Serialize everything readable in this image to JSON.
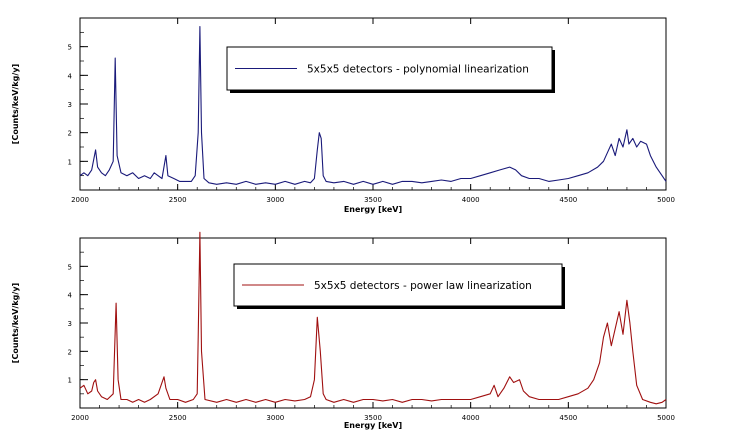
{
  "chart_data": [
    {
      "type": "line",
      "series": [
        {
          "name": "5x5x5 detectors - polynomial linearization",
          "color": "#1a1a7a",
          "points": [
            [
              2000,
              0.5
            ],
            [
              2020,
              0.6
            ],
            [
              2040,
              0.5
            ],
            [
              2060,
              0.7
            ],
            [
              2080,
              1.4
            ],
            [
              2090,
              0.8
            ],
            [
              2110,
              0.6
            ],
            [
              2130,
              0.5
            ],
            [
              2150,
              0.7
            ],
            [
              2170,
              1.0
            ],
            [
              2180,
              4.6
            ],
            [
              2190,
              1.2
            ],
            [
              2210,
              0.6
            ],
            [
              2240,
              0.5
            ],
            [
              2270,
              0.6
            ],
            [
              2300,
              0.4
            ],
            [
              2330,
              0.5
            ],
            [
              2360,
              0.4
            ],
            [
              2380,
              0.6
            ],
            [
              2400,
              0.5
            ],
            [
              2420,
              0.4
            ],
            [
              2440,
              1.2
            ],
            [
              2450,
              0.5
            ],
            [
              2480,
              0.4
            ],
            [
              2510,
              0.3
            ],
            [
              2540,
              0.3
            ],
            [
              2570,
              0.3
            ],
            [
              2590,
              0.5
            ],
            [
              2605,
              2.0
            ],
            [
              2614,
              5.7
            ],
            [
              2622,
              2.0
            ],
            [
              2635,
              0.4
            ],
            [
              2660,
              0.25
            ],
            [
              2700,
              0.2
            ],
            [
              2750,
              0.25
            ],
            [
              2800,
              0.2
            ],
            [
              2850,
              0.3
            ],
            [
              2900,
              0.2
            ],
            [
              2950,
              0.25
            ],
            [
              3000,
              0.2
            ],
            [
              3050,
              0.3
            ],
            [
              3100,
              0.2
            ],
            [
              3150,
              0.3
            ],
            [
              3180,
              0.25
            ],
            [
              3200,
              0.4
            ],
            [
              3215,
              1.4
            ],
            [
              3225,
              2.0
            ],
            [
              3235,
              1.8
            ],
            [
              3245,
              0.5
            ],
            [
              3260,
              0.3
            ],
            [
              3300,
              0.25
            ],
            [
              3350,
              0.3
            ],
            [
              3400,
              0.2
            ],
            [
              3450,
              0.3
            ],
            [
              3500,
              0.2
            ],
            [
              3550,
              0.3
            ],
            [
              3600,
              0.2
            ],
            [
              3650,
              0.3
            ],
            [
              3700,
              0.3
            ],
            [
              3750,
              0.25
            ],
            [
              3800,
              0.3
            ],
            [
              3850,
              0.35
            ],
            [
              3900,
              0.3
            ],
            [
              3950,
              0.4
            ],
            [
              4000,
              0.4
            ],
            [
              4050,
              0.5
            ],
            [
              4100,
              0.6
            ],
            [
              4150,
              0.7
            ],
            [
              4200,
              0.8
            ],
            [
              4230,
              0.7
            ],
            [
              4260,
              0.5
            ],
            [
              4300,
              0.4
            ],
            [
              4350,
              0.4
            ],
            [
              4400,
              0.3
            ],
            [
              4450,
              0.35
            ],
            [
              4500,
              0.4
            ],
            [
              4550,
              0.5
            ],
            [
              4600,
              0.6
            ],
            [
              4650,
              0.8
            ],
            [
              4680,
              1.0
            ],
            [
              4700,
              1.3
            ],
            [
              4720,
              1.6
            ],
            [
              4740,
              1.2
            ],
            [
              4760,
              1.8
            ],
            [
              4780,
              1.5
            ],
            [
              4800,
              2.1
            ],
            [
              4810,
              1.6
            ],
            [
              4830,
              1.8
            ],
            [
              4850,
              1.5
            ],
            [
              4870,
              1.7
            ],
            [
              4900,
              1.6
            ],
            [
              4920,
              1.2
            ],
            [
              4950,
              0.8
            ],
            [
              4980,
              0.5
            ],
            [
              5000,
              0.3
            ]
          ]
        }
      ],
      "xlabel": "Energy [keV]",
      "ylabel": "[Counts/keV/kg/y]",
      "xlim": [
        2000,
        5000
      ],
      "ylim": [
        0,
        6
      ],
      "xticks": [
        2000,
        2500,
        3000,
        3500,
        4000,
        4500,
        5000
      ],
      "yticks": [
        1,
        2,
        3,
        4,
        5
      ],
      "legend_position": "top-center",
      "grid": false
    },
    {
      "type": "line",
      "series": [
        {
          "name": "5x5x5 detectors - power law linearization",
          "color": "#a01010",
          "points": [
            [
              2000,
              0.7
            ],
            [
              2020,
              0.8
            ],
            [
              2040,
              0.5
            ],
            [
              2060,
              0.6
            ],
            [
              2070,
              0.9
            ],
            [
              2080,
              1.0
            ],
            [
              2090,
              0.6
            ],
            [
              2110,
              0.4
            ],
            [
              2140,
              0.3
            ],
            [
              2170,
              0.5
            ],
            [
              2185,
              3.7
            ],
            [
              2195,
              1.0
            ],
            [
              2210,
              0.3
            ],
            [
              2240,
              0.3
            ],
            [
              2270,
              0.2
            ],
            [
              2300,
              0.3
            ],
            [
              2330,
              0.2
            ],
            [
              2360,
              0.3
            ],
            [
              2400,
              0.5
            ],
            [
              2430,
              1.1
            ],
            [
              2440,
              0.7
            ],
            [
              2460,
              0.3
            ],
            [
              2500,
              0.3
            ],
            [
              2540,
              0.2
            ],
            [
              2580,
              0.3
            ],
            [
              2600,
              0.5
            ],
            [
              2605,
              2.5
            ],
            [
              2614,
              6.2
            ],
            [
              2622,
              2.0
            ],
            [
              2640,
              0.3
            ],
            [
              2700,
              0.2
            ],
            [
              2750,
              0.3
            ],
            [
              2800,
              0.2
            ],
            [
              2850,
              0.3
            ],
            [
              2900,
              0.2
            ],
            [
              2950,
              0.3
            ],
            [
              3000,
              0.2
            ],
            [
              3050,
              0.3
            ],
            [
              3100,
              0.25
            ],
            [
              3150,
              0.3
            ],
            [
              3180,
              0.4
            ],
            [
              3200,
              1.0
            ],
            [
              3215,
              3.2
            ],
            [
              3230,
              2.0
            ],
            [
              3245,
              0.5
            ],
            [
              3260,
              0.3
            ],
            [
              3300,
              0.2
            ],
            [
              3350,
              0.3
            ],
            [
              3400,
              0.2
            ],
            [
              3450,
              0.3
            ],
            [
              3500,
              0.3
            ],
            [
              3550,
              0.25
            ],
            [
              3600,
              0.3
            ],
            [
              3650,
              0.2
            ],
            [
              3700,
              0.3
            ],
            [
              3750,
              0.3
            ],
            [
              3800,
              0.25
            ],
            [
              3850,
              0.3
            ],
            [
              3900,
              0.3
            ],
            [
              3950,
              0.3
            ],
            [
              4000,
              0.3
            ],
            [
              4050,
              0.4
            ],
            [
              4100,
              0.5
            ],
            [
              4120,
              0.8
            ],
            [
              4140,
              0.4
            ],
            [
              4170,
              0.7
            ],
            [
              4200,
              1.1
            ],
            [
              4220,
              0.9
            ],
            [
              4250,
              1.0
            ],
            [
              4270,
              0.6
            ],
            [
              4300,
              0.4
            ],
            [
              4350,
              0.3
            ],
            [
              4400,
              0.3
            ],
            [
              4450,
              0.3
            ],
            [
              4500,
              0.4
            ],
            [
              4550,
              0.5
            ],
            [
              4600,
              0.7
            ],
            [
              4630,
              1.0
            ],
            [
              4660,
              1.6
            ],
            [
              4680,
              2.5
            ],
            [
              4700,
              3.0
            ],
            [
              4720,
              2.2
            ],
            [
              4740,
              2.8
            ],
            [
              4760,
              3.4
            ],
            [
              4780,
              2.6
            ],
            [
              4800,
              3.8
            ],
            [
              4815,
              3.0
            ],
            [
              4830,
              2.0
            ],
            [
              4850,
              0.8
            ],
            [
              4880,
              0.3
            ],
            [
              4920,
              0.2
            ],
            [
              4950,
              0.15
            ],
            [
              4980,
              0.2
            ],
            [
              5000,
              0.3
            ]
          ]
        }
      ],
      "xlabel": "Energy [keV]",
      "ylabel": "[Counts/keV/kg/y]",
      "xlim": [
        2000,
        5000
      ],
      "ylim": [
        0,
        6
      ],
      "xticks": [
        2000,
        2500,
        3000,
        3500,
        4000,
        4500,
        5000
      ],
      "yticks": [
        1,
        2,
        3,
        4,
        5
      ],
      "legend_position": "top-center",
      "grid": false
    }
  ]
}
